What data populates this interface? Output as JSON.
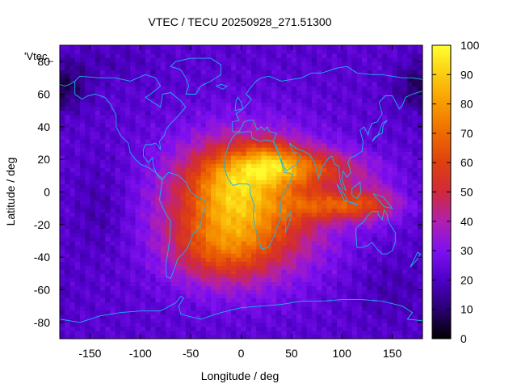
{
  "chart_data": {
    "type": "heatmap",
    "title": "VTEC / TECU 20250928_271.51300",
    "xlabel": "Longitude / deg",
    "ylabel": "Latitude / deg",
    "xlim": [
      -180,
      180
    ],
    "ylim": [
      -90,
      90
    ],
    "xticks": [
      -150,
      -100,
      -50,
      0,
      50,
      100,
      150
    ],
    "yticks": [
      -80,
      -60,
      -40,
      -20,
      0,
      20,
      40,
      60,
      80
    ],
    "legend_label": "'Vtec_",
    "colorbar": {
      "min": 0,
      "max": 100,
      "ticks": [
        0,
        10,
        20,
        30,
        40,
        50,
        60,
        70,
        80,
        90,
        100
      ],
      "stops": [
        {
          "value": 0,
          "color": "#000000"
        },
        {
          "value": 10,
          "color": "#2a0070"
        },
        {
          "value": 20,
          "color": "#4e00c8"
        },
        {
          "value": 30,
          "color": "#7e10f0"
        },
        {
          "value": 40,
          "color": "#b020b0"
        },
        {
          "value": 50,
          "color": "#d02a3a"
        },
        {
          "value": 60,
          "color": "#df4010"
        },
        {
          "value": 70,
          "color": "#ee6a00"
        },
        {
          "value": 80,
          "color": "#f89a00"
        },
        {
          "value": 90,
          "color": "#fbcc10"
        },
        {
          "value": 100,
          "color": "#ffff30"
        }
      ]
    },
    "grid_resolution_deg": [
      5,
      2.5
    ],
    "field": {
      "background": 22,
      "blobs": [
        {
          "lon": 5,
          "lat": -8,
          "sigma_lon": 55,
          "sigma_lat": 28,
          "amp": 50
        },
        {
          "lon": -10,
          "lat": 5,
          "sigma_lon": 28,
          "sigma_lat": 16,
          "amp": 22
        },
        {
          "lon": -20,
          "lat": -35,
          "sigma_lon": 35,
          "sigma_lat": 15,
          "amp": 22
        },
        {
          "lon": 30,
          "lat": 20,
          "sigma_lon": 20,
          "sigma_lat": 9,
          "amp": 18
        },
        {
          "lon": 60,
          "lat": 15,
          "sigma_lon": 45,
          "sigma_lat": 8,
          "amp": 28
        },
        {
          "lon": 100,
          "lat": -8,
          "sigma_lon": 35,
          "sigma_lat": 6,
          "amp": 30
        },
        {
          "lon": 130,
          "lat": -5,
          "sigma_lon": 20,
          "sigma_lat": 10,
          "amp": 12
        },
        {
          "lon": -170,
          "lat": 65,
          "sigma_lon": 15,
          "sigma_lat": 10,
          "amp": -10
        },
        {
          "lon": 170,
          "lat": 65,
          "sigma_lon": 15,
          "sigma_lat": 10,
          "amp": -8
        },
        {
          "lon": -140,
          "lat": -10,
          "sigma_lon": 20,
          "sigma_lat": 20,
          "amp": -6
        },
        {
          "lon": 150,
          "lat": -60,
          "sigma_lon": 25,
          "sigma_lat": 15,
          "amp": -5
        },
        {
          "lon": -130,
          "lat": 80,
          "sigma_lon": 30,
          "sigma_lat": 8,
          "amp": -4
        }
      ]
    },
    "coastlines": [
      [
        [
          -165,
          68
        ],
        [
          -160,
          71
        ],
        [
          -140,
          70
        ],
        [
          -125,
          70
        ],
        [
          -110,
          68
        ],
        [
          -95,
          72
        ],
        [
          -85,
          70
        ],
        [
          -80,
          65
        ],
        [
          -90,
          60
        ],
        [
          -95,
          58
        ],
        [
          -80,
          52
        ],
        [
          -78,
          60
        ],
        [
          -70,
          61
        ],
        [
          -60,
          56
        ],
        [
          -55,
          52
        ],
        [
          -65,
          45
        ],
        [
          -70,
          42
        ],
        [
          -75,
          38
        ],
        [
          -76,
          35
        ],
        [
          -81,
          31
        ],
        [
          -80,
          26
        ],
        [
          -82,
          28
        ],
        [
          -85,
          30
        ],
        [
          -90,
          29
        ],
        [
          -95,
          29
        ],
        [
          -97,
          26
        ],
        [
          -97,
          22
        ],
        [
          -92,
          18
        ],
        [
          -88,
          21
        ],
        [
          -87,
          16
        ],
        [
          -84,
          11
        ],
        [
          -80,
          8
        ],
        [
          -78,
          8
        ],
        [
          -85,
          12
        ],
        [
          -92,
          15
        ],
        [
          -100,
          17
        ],
        [
          -105,
          20
        ],
        [
          -110,
          24
        ],
        [
          -112,
          30
        ],
        [
          -117,
          33
        ],
        [
          -120,
          35
        ],
        [
          -124,
          40
        ],
        [
          -124,
          47
        ],
        [
          -130,
          54
        ],
        [
          -135,
          58
        ],
        [
          -145,
          60
        ],
        [
          -152,
          59
        ],
        [
          -158,
          57
        ],
        [
          -165,
          60
        ],
        [
          -165,
          68
        ]
      ],
      [
        [
          -78,
          8
        ],
        [
          -72,
          12
        ],
        [
          -62,
          10
        ],
        [
          -55,
          6
        ],
        [
          -50,
          0
        ],
        [
          -44,
          -3
        ],
        [
          -36,
          -5
        ],
        [
          -35,
          -9
        ],
        [
          -39,
          -15
        ],
        [
          -41,
          -22
        ],
        [
          -48,
          -26
        ],
        [
          -53,
          -34
        ],
        [
          -58,
          -38
        ],
        [
          -63,
          -41
        ],
        [
          -65,
          -45
        ],
        [
          -68,
          -50
        ],
        [
          -70,
          -53
        ],
        [
          -74,
          -52
        ],
        [
          -75,
          -45
        ],
        [
          -73,
          -38
        ],
        [
          -71,
          -30
        ],
        [
          -70,
          -18
        ],
        [
          -76,
          -12
        ],
        [
          -81,
          -5
        ],
        [
          -80,
          0
        ],
        [
          -78,
          8
        ]
      ],
      [
        [
          -17,
          15
        ],
        [
          -16,
          21
        ],
        [
          -13,
          28
        ],
        [
          -9,
          33
        ],
        [
          -5,
          36
        ],
        [
          3,
          37
        ],
        [
          10,
          37
        ],
        [
          11,
          33
        ],
        [
          20,
          31
        ],
        [
          25,
          32
        ],
        [
          32,
          31
        ],
        [
          35,
          28
        ],
        [
          39,
          20
        ],
        [
          43,
          12
        ],
        [
          51,
          11
        ],
        [
          48,
          5
        ],
        [
          40,
          -3
        ],
        [
          39,
          -10
        ],
        [
          40,
          -15
        ],
        [
          35,
          -22
        ],
        [
          33,
          -27
        ],
        [
          27,
          -34
        ],
        [
          20,
          -35
        ],
        [
          18,
          -30
        ],
        [
          14,
          -22
        ],
        [
          12,
          -15
        ],
        [
          13,
          -8
        ],
        [
          9,
          -1
        ],
        [
          9,
          4
        ],
        [
          5,
          5
        ],
        [
          -2,
          5
        ],
        [
          -8,
          4
        ],
        [
          -13,
          8
        ],
        [
          -17,
          15
        ]
      ],
      [
        [
          -9,
          37
        ],
        [
          -9,
          43
        ],
        [
          -2,
          44
        ],
        [
          -5,
          48
        ],
        [
          2,
          51
        ],
        [
          5,
          53
        ],
        [
          8,
          55
        ],
        [
          10,
          57
        ],
        [
          5,
          60
        ],
        [
          8,
          63
        ],
        [
          15,
          68
        ],
        [
          20,
          70
        ],
        [
          28,
          71
        ],
        [
          40,
          68
        ],
        [
          50,
          69
        ],
        [
          60,
          70
        ],
        [
          70,
          73
        ],
        [
          80,
          73
        ],
        [
          95,
          76
        ],
        [
          105,
          77
        ],
        [
          115,
          73
        ],
        [
          130,
          72
        ],
        [
          140,
          72
        ],
        [
          160,
          70
        ],
        [
          170,
          70
        ],
        [
          180,
          69
        ]
      ],
      [
        [
          -180,
          66
        ],
        [
          -175,
          65
        ],
        [
          -170,
          66
        ],
        [
          -165,
          68
        ]
      ],
      [
        [
          180,
          62
        ],
        [
          170,
          60
        ],
        [
          163,
          58
        ],
        [
          160,
          53
        ],
        [
          157,
          51
        ],
        [
          150,
          59
        ],
        [
          143,
          59
        ],
        [
          137,
          55
        ],
        [
          140,
          48
        ],
        [
          135,
          43
        ],
        [
          130,
          42
        ],
        [
          127,
          38
        ],
        [
          126,
          35
        ],
        [
          122,
          40
        ],
        [
          118,
          38
        ],
        [
          121,
          31
        ],
        [
          120,
          25
        ],
        [
          113,
          22
        ],
        [
          108,
          21
        ],
        [
          106,
          18
        ],
        [
          109,
          12
        ],
        [
          105,
          9
        ],
        [
          101,
          13
        ],
        [
          100,
          8
        ],
        [
          104,
          1
        ],
        [
          100,
          3
        ],
        [
          98,
          8
        ],
        [
          97,
          16
        ],
        [
          93,
          17
        ],
        [
          90,
          22
        ],
        [
          87,
          21
        ],
        [
          80,
          15
        ],
        [
          77,
          8
        ],
        [
          73,
          18
        ],
        [
          68,
          23
        ],
        [
          62,
          25
        ],
        [
          57,
          26
        ],
        [
          52,
          28
        ],
        [
          48,
          30
        ],
        [
          52,
          24
        ],
        [
          56,
          24
        ],
        [
          59,
          22
        ],
        [
          55,
          17
        ],
        [
          45,
          13
        ],
        [
          43,
          15
        ],
        [
          38,
          22
        ],
        [
          34,
          28
        ],
        [
          32,
          31
        ],
        [
          35,
          36
        ],
        [
          28,
          37
        ],
        [
          26,
          40
        ],
        [
          23,
          38
        ],
        [
          20,
          40
        ],
        [
          16,
          38
        ],
        [
          12,
          44
        ],
        [
          8,
          44
        ],
        [
          3,
          43
        ],
        [
          -2,
          37
        ],
        [
          -9,
          37
        ]
      ],
      [
        [
          114,
          -22
        ],
        [
          114,
          -26
        ],
        [
          115,
          -34
        ],
        [
          120,
          -34
        ],
        [
          125,
          -33
        ],
        [
          130,
          -31
        ],
        [
          135,
          -35
        ],
        [
          140,
          -38
        ],
        [
          145,
          -38
        ],
        [
          150,
          -36
        ],
        [
          153,
          -31
        ],
        [
          153,
          -25
        ],
        [
          150,
          -22
        ],
        [
          146,
          -18
        ],
        [
          145,
          -14
        ],
        [
          142,
          -11
        ],
        [
          140,
          -17
        ],
        [
          136,
          -14
        ],
        [
          136,
          -12
        ],
        [
          130,
          -12
        ],
        [
          125,
          -15
        ],
        [
          122,
          -18
        ],
        [
          114,
          -22
        ]
      ],
      [
        [
          -180,
          -78
        ],
        [
          -160,
          -80
        ],
        [
          -150,
          -78
        ],
        [
          -140,
          -76
        ],
        [
          -120,
          -74
        ],
        [
          -100,
          -73
        ],
        [
          -80,
          -73
        ],
        [
          -65,
          -68
        ],
        [
          -60,
          -64
        ],
        [
          -57,
          -65
        ],
        [
          -62,
          -70
        ],
        [
          -60,
          -75
        ],
        [
          -40,
          -78
        ],
        [
          -20,
          -74
        ],
        [
          0,
          -71
        ],
        [
          20,
          -70
        ],
        [
          40,
          -69
        ],
        [
          60,
          -67
        ],
        [
          80,
          -67
        ],
        [
          100,
          -66
        ],
        [
          120,
          -66
        ],
        [
          140,
          -67
        ],
        [
          160,
          -70
        ],
        [
          170,
          -74
        ],
        [
          165,
          -78
        ],
        [
          180,
          -79
        ]
      ],
      [
        [
          -55,
          60
        ],
        [
          -45,
          60
        ],
        [
          -40,
          65
        ],
        [
          -30,
          68
        ],
        [
          -20,
          72
        ],
        [
          -20,
          78
        ],
        [
          -30,
          82
        ],
        [
          -50,
          82
        ],
        [
          -65,
          80
        ],
        [
          -70,
          77
        ],
        [
          -60,
          75
        ],
        [
          -55,
          70
        ],
        [
          -52,
          65
        ],
        [
          -55,
          60
        ]
      ],
      [
        [
          95,
          5
        ],
        [
          103,
          -2
        ],
        [
          106,
          -6
        ],
        [
          102,
          -5
        ],
        [
          97,
          2
        ],
        [
          95,
          5
        ]
      ],
      [
        [
          106,
          -6
        ],
        [
          115,
          -8
        ],
        [
          114,
          -7
        ],
        [
          106,
          -6
        ]
      ],
      [
        [
          110,
          2
        ],
        [
          118,
          6
        ],
        [
          119,
          0
        ],
        [
          115,
          -4
        ],
        [
          110,
          -2
        ],
        [
          110,
          2
        ]
      ],
      [
        [
          131,
          -1
        ],
        [
          141,
          -3
        ],
        [
          150,
          -10
        ],
        [
          142,
          -9
        ],
        [
          135,
          -4
        ],
        [
          131,
          -1
        ]
      ],
      [
        [
          44,
          -25
        ],
        [
          50,
          -15
        ],
        [
          49,
          -12
        ],
        [
          44,
          -17
        ],
        [
          44,
          -25
        ]
      ],
      [
        [
          130,
          31
        ],
        [
          133,
          34
        ],
        [
          140,
          36
        ],
        [
          141,
          41
        ],
        [
          145,
          44
        ],
        [
          140,
          42
        ],
        [
          136,
          35
        ],
        [
          130,
          31
        ]
      ],
      [
        [
          -6,
          50
        ],
        [
          2,
          51
        ],
        [
          0,
          55
        ],
        [
          -3,
          58
        ],
        [
          -5,
          56
        ],
        [
          -6,
          50
        ]
      ],
      [
        [
          172,
          -41
        ],
        [
          175,
          -37
        ],
        [
          178,
          -38
        ],
        [
          174,
          -42
        ],
        [
          168,
          -46
        ],
        [
          172,
          -41
        ]
      ],
      [
        [
          -25,
          65
        ],
        [
          -20,
          66
        ],
        [
          -14,
          65
        ],
        [
          -18,
          63
        ],
        [
          -25,
          65
        ]
      ]
    ]
  }
}
